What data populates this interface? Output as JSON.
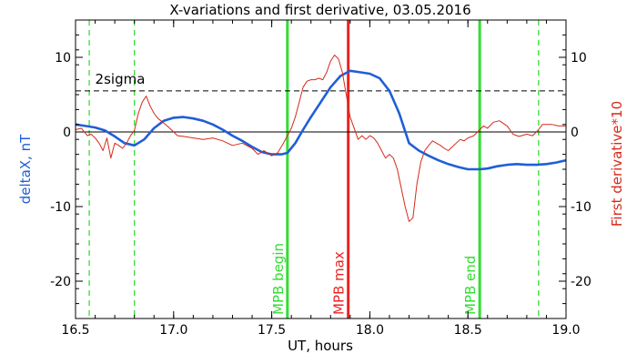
{
  "chart_data": {
    "type": "line",
    "title": "X-variations and first derivative, 03.05.2016",
    "xlabel": "UT, hours",
    "ylabel_left": "deltaX, nT",
    "ylabel_right": "First derivative*10",
    "xlim": [
      16.5,
      19.0
    ],
    "ylim": [
      -25,
      15
    ],
    "x_ticks": [
      "16.5",
      "17.0",
      "17.5",
      "18.0",
      "18.5",
      "19.0"
    ],
    "y_ticks": [
      "10",
      "0",
      "-10",
      "-20"
    ],
    "grid": false,
    "colors": {
      "deltaX": "#1f5fd6",
      "derivative": "#d62a1a",
      "green": "#33dd33",
      "red_line": "#ee2222",
      "axes": "#000000"
    },
    "threshold": {
      "label": "2sigma",
      "value": 5.5
    },
    "zero_line": 0,
    "vertical_markers": [
      {
        "x": 17.58,
        "label": "MPB begin",
        "color": "#33dd33",
        "style": "solid"
      },
      {
        "x": 17.89,
        "label": "MPB max",
        "color": "#ee2222",
        "style": "solid"
      },
      {
        "x": 18.56,
        "label": "MPB end",
        "color": "#33dd33",
        "style": "solid"
      },
      {
        "x": 16.57,
        "label": "",
        "color": "#33dd33",
        "style": "dashed"
      },
      {
        "x": 16.8,
        "label": "",
        "color": "#33dd33",
        "style": "dashed"
      },
      {
        "x": 18.86,
        "label": "",
        "color": "#33dd33",
        "style": "dashed"
      }
    ],
    "series": [
      {
        "key": "deltaX",
        "x": [
          16.5,
          16.55,
          16.6,
          16.65,
          16.7,
          16.75,
          16.8,
          16.85,
          16.9,
          16.95,
          17.0,
          17.05,
          17.1,
          17.15,
          17.2,
          17.25,
          17.3,
          17.35,
          17.4,
          17.45,
          17.5,
          17.55,
          17.58,
          17.62,
          17.66,
          17.7,
          17.75,
          17.8,
          17.85,
          17.9,
          17.95,
          18.0,
          18.05,
          18.1,
          18.15,
          18.2,
          18.25,
          18.3,
          18.35,
          18.4,
          18.45,
          18.5,
          18.56,
          18.6,
          18.65,
          18.7,
          18.75,
          18.8,
          18.85,
          18.9,
          18.95,
          19.0
        ],
        "values": [
          1.0,
          0.8,
          0.6,
          0.2,
          -0.6,
          -1.5,
          -1.8,
          -1.0,
          0.5,
          1.5,
          1.9,
          2.0,
          1.8,
          1.5,
          1.0,
          0.3,
          -0.5,
          -1.2,
          -2.0,
          -2.7,
          -3.0,
          -3.0,
          -2.8,
          -1.5,
          0.3,
          2.0,
          4.0,
          6.0,
          7.5,
          8.2,
          8.0,
          7.8,
          7.2,
          5.5,
          2.5,
          -1.5,
          -2.5,
          -3.2,
          -3.8,
          -4.3,
          -4.7,
          -5.0,
          -5.0,
          -4.9,
          -4.6,
          -4.4,
          -4.3,
          -4.4,
          -4.4,
          -4.3,
          -4.1,
          -3.8
        ]
      },
      {
        "key": "derivative",
        "x": [
          16.5,
          16.53,
          16.56,
          16.58,
          16.6,
          16.62,
          16.64,
          16.66,
          16.68,
          16.7,
          16.72,
          16.74,
          16.76,
          16.78,
          16.8,
          16.82,
          16.84,
          16.86,
          16.88,
          16.9,
          16.92,
          16.95,
          16.98,
          17.0,
          17.02,
          17.05,
          17.1,
          17.15,
          17.2,
          17.25,
          17.3,
          17.35,
          17.4,
          17.43,
          17.46,
          17.5,
          17.53,
          17.56,
          17.58,
          17.6,
          17.62,
          17.64,
          17.66,
          17.68,
          17.7,
          17.72,
          17.74,
          17.76,
          17.78,
          17.8,
          17.82,
          17.84,
          17.86,
          17.88,
          17.9,
          17.92,
          17.94,
          17.96,
          17.98,
          18.0,
          18.02,
          18.04,
          18.06,
          18.08,
          18.1,
          18.12,
          18.14,
          18.16,
          18.18,
          18.2,
          18.22,
          18.24,
          18.26,
          18.28,
          18.3,
          18.32,
          18.34,
          18.36,
          18.38,
          18.4,
          18.42,
          18.44,
          18.46,
          18.48,
          18.5,
          18.53,
          18.56,
          18.58,
          18.6,
          18.63,
          18.66,
          18.7,
          18.73,
          18.76,
          18.8,
          18.83,
          18.86,
          18.88,
          18.9,
          18.93,
          18.96,
          19.0
        ],
        "values": [
          0.3,
          0.5,
          -0.5,
          -0.3,
          -0.8,
          -1.5,
          -2.5,
          -0.8,
          -3.5,
          -1.5,
          -1.8,
          -2.2,
          -1.5,
          -0.5,
          0.2,
          2.5,
          4.0,
          4.8,
          3.5,
          2.5,
          1.8,
          1.2,
          0.5,
          0.0,
          -0.5,
          -0.6,
          -0.8,
          -1.0,
          -0.8,
          -1.2,
          -1.8,
          -1.5,
          -2.2,
          -3.0,
          -2.5,
          -3.2,
          -2.8,
          -1.5,
          -0.5,
          0.5,
          2.0,
          4.0,
          6.0,
          6.8,
          7.0,
          7.0,
          7.2,
          7.0,
          8.0,
          9.5,
          10.3,
          9.8,
          8.0,
          5.0,
          2.0,
          0.5,
          -1.0,
          -0.5,
          -1.0,
          -0.5,
          -0.8,
          -1.5,
          -2.5,
          -3.5,
          -3.0,
          -3.5,
          -5.0,
          -7.5,
          -10.0,
          -12.0,
          -11.5,
          -7.0,
          -4.0,
          -2.5,
          -1.8,
          -1.2,
          -1.5,
          -1.8,
          -2.2,
          -2.5,
          -2.0,
          -1.5,
          -1.0,
          -1.2,
          -0.8,
          -0.5,
          0.3,
          0.8,
          0.5,
          1.3,
          1.5,
          0.8,
          -0.3,
          -0.6,
          -0.3,
          -0.5,
          0.3,
          1.0,
          1.0,
          1.0,
          0.8,
          0.8
        ]
      }
    ]
  }
}
